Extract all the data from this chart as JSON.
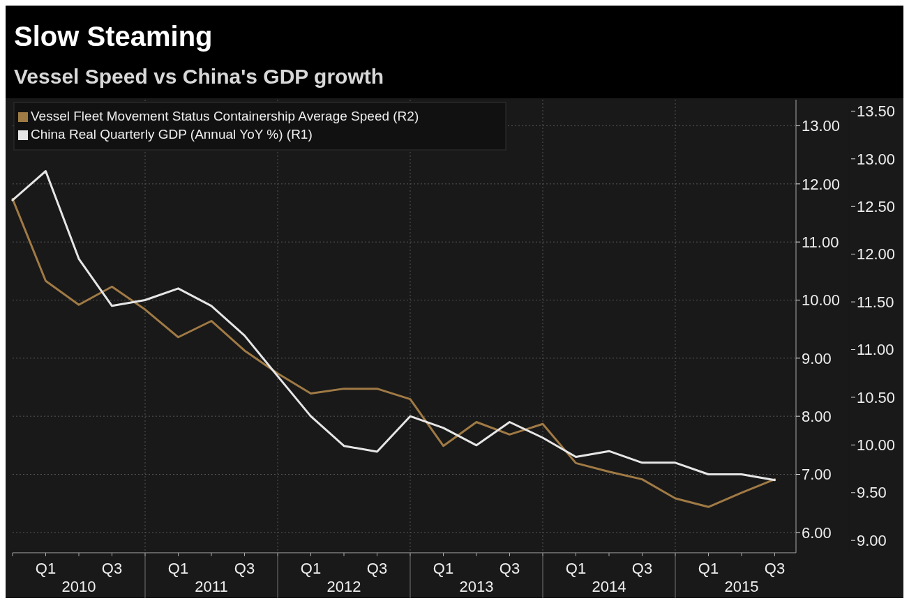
{
  "chart_data": {
    "type": "line",
    "title": "Slow Steaming",
    "subtitle": "Vessel Speed vs China's GDP growth",
    "categories": [
      null,
      "Q1",
      null,
      "Q3",
      null,
      "Q1",
      null,
      "Q3",
      null,
      "Q1",
      null,
      "Q3",
      null,
      "Q1",
      null,
      "Q3",
      null,
      "Q1",
      null,
      "Q3",
      null,
      "Q1",
      null,
      "Q3"
    ],
    "annotations": [
      "2010",
      "2011",
      "2012",
      "2013",
      "2014",
      "2015"
    ],
    "series": [
      {
        "name": "Vessel Fleet Movement Status Containership Average Speed (R2)",
        "color": "#a07a45",
        "axis": "y2",
        "values": [
          12.58,
          11.72,
          11.47,
          11.66,
          11.42,
          11.13,
          11.3,
          10.99,
          10.75,
          10.54,
          10.59,
          10.59,
          10.48,
          9.99,
          10.24,
          10.11,
          10.22,
          9.81,
          9.72,
          9.64,
          9.44,
          9.35,
          9.5,
          9.64
        ]
      },
      {
        "name": "China Real Quarterly GDP (Annual YoY %) (R1)",
        "color": "#e6e6e6",
        "values": [
          11.72,
          12.22,
          10.71,
          9.9,
          10.0,
          10.2,
          9.9,
          9.39,
          8.69,
          8.0,
          7.49,
          7.39,
          8.0,
          7.8,
          7.5,
          7.9,
          7.63,
          7.3,
          7.4,
          7.2,
          7.2,
          7.0,
          7.0,
          6.9
        ]
      }
    ],
    "ylim": [
      5.65,
      13.45
    ],
    "yticks": [
      {
        "value": 6,
        "label": "6.00"
      },
      {
        "value": 7,
        "label": "7.00"
      },
      {
        "value": 8,
        "label": "8.00"
      },
      {
        "value": 9,
        "label": "9.00"
      },
      {
        "value": 10,
        "label": "10.00"
      },
      {
        "value": 11,
        "label": "11.00"
      },
      {
        "value": 12,
        "label": "12.00"
      },
      {
        "value": 13,
        "label": "13.00"
      }
    ],
    "y2lim": [
      8.87,
      13.62
    ],
    "y2ticks": [
      {
        "value": 9,
        "label": "9.00"
      },
      {
        "value": 9.5,
        "label": "9.50"
      },
      {
        "value": 10,
        "label": "10.00"
      },
      {
        "value": 10.5,
        "label": "10.50"
      },
      {
        "value": 11,
        "label": "11.00"
      },
      {
        "value": 11.5,
        "label": "11.50"
      },
      {
        "value": 12,
        "label": "12.00"
      },
      {
        "value": 12.5,
        "label": "12.50"
      },
      {
        "value": 13,
        "label": "13.00"
      },
      {
        "value": 13.5,
        "label": "13.50"
      }
    ],
    "grid": true,
    "legend": "top left",
    "line_style": "solid",
    "marker": "none"
  }
}
